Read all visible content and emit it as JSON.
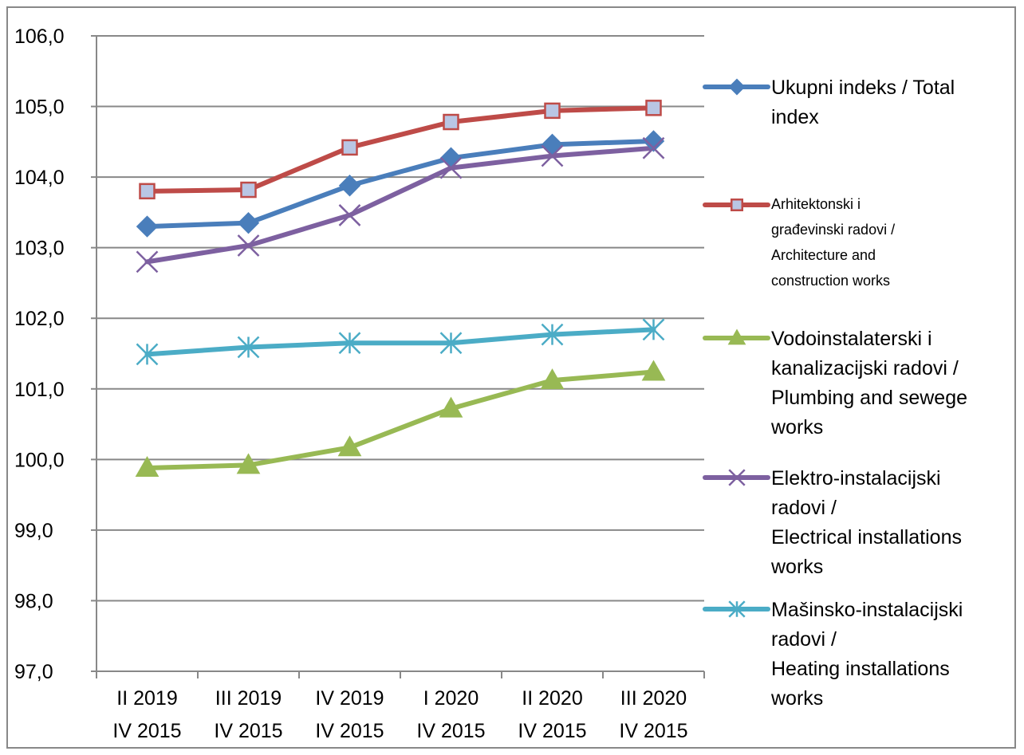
{
  "chart_data": {
    "type": "line",
    "categories": [
      [
        "II 2019",
        "IV 2015"
      ],
      [
        "III 2019",
        "IV 2015"
      ],
      [
        "IV 2019",
        "IV 2015"
      ],
      [
        "I 2020",
        "IV 2015"
      ],
      [
        "II 2020",
        "IV 2015"
      ],
      [
        "III 2020",
        "IV 2015"
      ]
    ],
    "ylim": [
      97.0,
      106.0
    ],
    "yticks": [
      "97,0",
      "98,0",
      "99,0",
      "100,0",
      "101,0",
      "102,0",
      "103,0",
      "104,0",
      "105,0",
      "106,0"
    ],
    "grid": true,
    "legend_position": "right",
    "series": [
      {
        "name": "Ukupni indeks / Total index",
        "legend_lines": [
          "Ukupni indeks / Total",
          "index"
        ],
        "marker": "diamond",
        "color": "#4a7ebb",
        "values": [
          103.3,
          103.35,
          103.88,
          104.27,
          104.46,
          104.51
        ]
      },
      {
        "name": "Arhitektonski i građevinski radovi / Architecture and construction works",
        "legend_lines": [
          "Arhitektonski i",
          "građevinski radovi /",
          "Architecture  and",
          "construction works"
        ],
        "marker": "square",
        "color": "#be4b48",
        "values": [
          103.8,
          103.82,
          104.42,
          104.78,
          104.94,
          104.98
        ]
      },
      {
        "name": "Vodoinstalaterski i kanalizacijski radovi / Plumbing and sewege works",
        "legend_lines": [
          "Vodoinstalaterski i",
          "kanalizacijski radovi /",
          "Plumbing and sewege",
          "works"
        ],
        "marker": "triangle",
        "color": "#98b954",
        "values": [
          99.88,
          99.92,
          100.17,
          100.72,
          101.12,
          101.24
        ]
      },
      {
        "name": "Elektro-instalacijski radovi / Electrical installations works",
        "legend_lines": [
          "Elektro-instalacijski",
          "radovi /",
          "Electrical installations",
          "works"
        ],
        "marker": "x",
        "color": "#7d60a0",
        "values": [
          102.8,
          103.03,
          103.46,
          104.13,
          104.3,
          104.41
        ]
      },
      {
        "name": "Mašinsko-instalacijski radovi / Heating installations works",
        "legend_lines": [
          "Mašinsko-instalacijski",
          "radovi /",
          "Heating installations",
          "works"
        ],
        "marker": "asterisk",
        "color": "#4bacc6",
        "values": [
          101.49,
          101.59,
          101.65,
          101.65,
          101.77,
          101.84
        ]
      }
    ]
  }
}
